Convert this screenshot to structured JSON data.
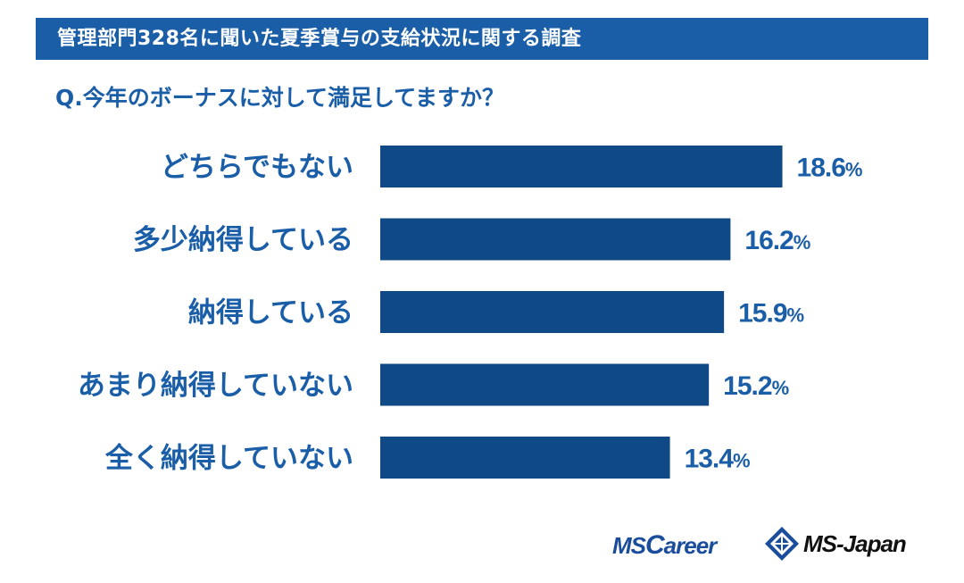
{
  "header": {
    "title": "管理部門328名に聞いた夏季賞与の支給状況に関する調査"
  },
  "question": "Q.今年のボーナスに対して満足してますか？",
  "colors": {
    "title_bg": "#1b5ea8",
    "text": "#1b5ea8",
    "bar": "#0f4a86",
    "logo_blue": "#1a4d9c"
  },
  "chart_data": {
    "type": "bar",
    "orientation": "horizontal",
    "categories": [
      "どちらでもない",
      "多少納得している",
      "納得している",
      "あまり納得していない",
      "全く納得していない"
    ],
    "values": [
      18.6,
      16.2,
      15.9,
      15.2,
      13.4
    ],
    "value_labels": [
      "18.6",
      "16.2",
      "15.9",
      "15.2",
      "13.4"
    ],
    "unit": "%",
    "xlim": [
      0,
      27
    ],
    "grid": false,
    "legend": "none"
  },
  "logos": {
    "mscareer": {
      "ms": "MS",
      "c": "C",
      "areer": "areer"
    },
    "msjapan": "MS-Japan",
    "mark_icon": "ms-japan-diamond-icon"
  }
}
